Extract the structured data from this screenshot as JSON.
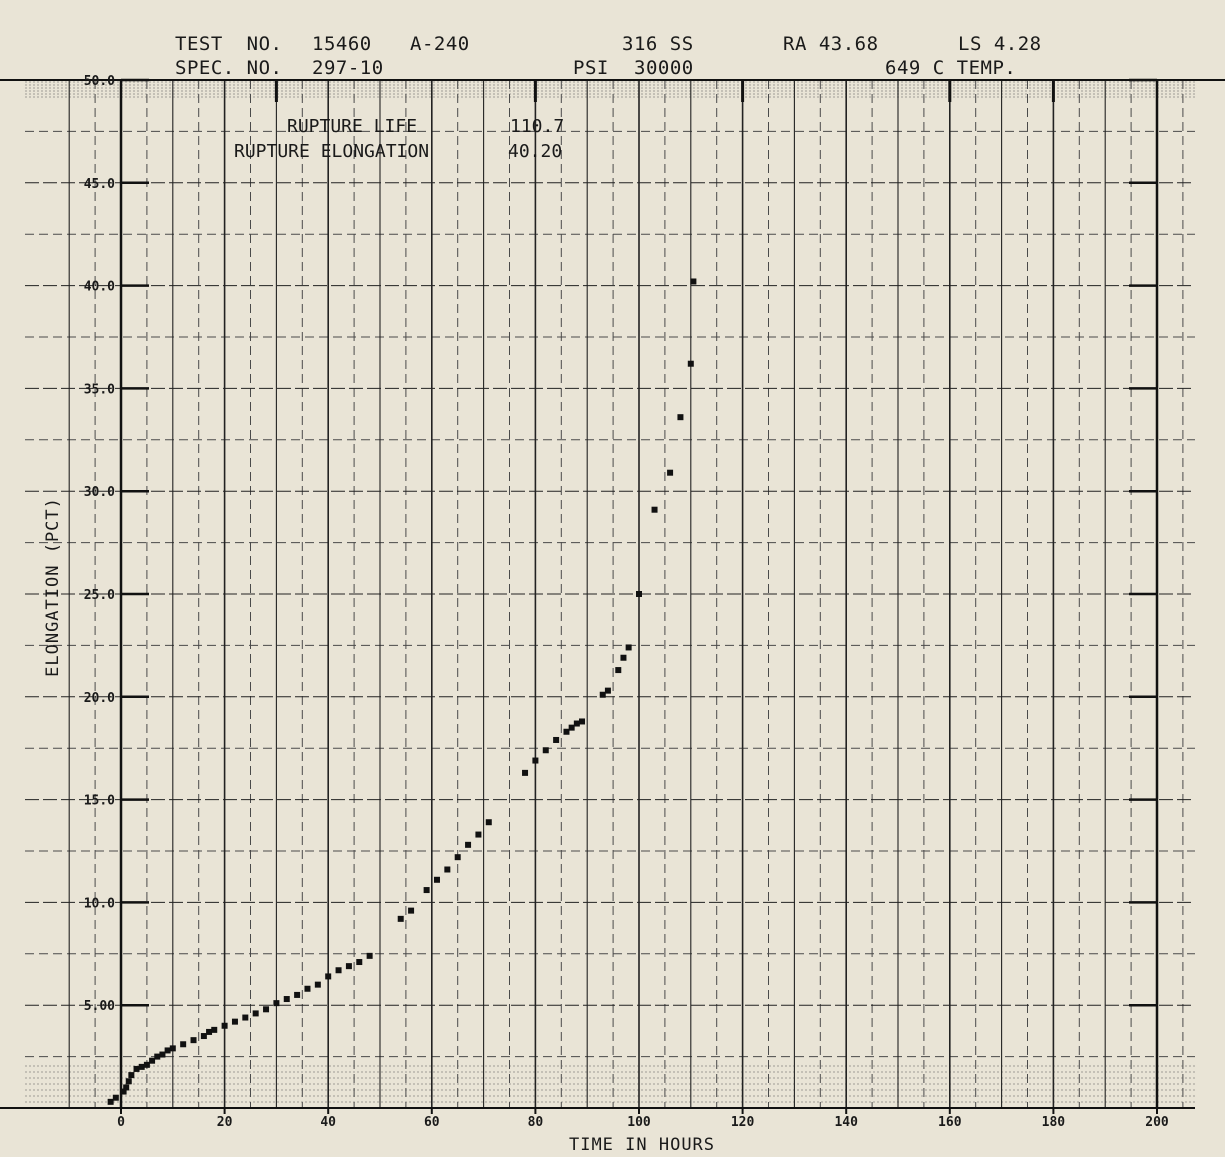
{
  "header": {
    "test_no_label": "TEST  NO.",
    "test_no": "15460",
    "test_code": "A-240",
    "spec_no_label": "SPEC. NO.",
    "spec_no": "297-10",
    "material": "316 SS",
    "psi_label": "PSI",
    "psi": "30000",
    "ra": "RA 43.68",
    "ls": "LS 4.28",
    "temp": "649 C TEMP."
  },
  "annotation": {
    "rupture_life_label": "RUPTURE LIFE",
    "rupture_life_value": "110.7",
    "rupture_elongation_label": "RUPTURE ELONGATION",
    "rupture_elongation_value": "40.20"
  },
  "chart_data": {
    "type": "scatter",
    "title": "",
    "xlabel": "TIME IN HOURS",
    "ylabel": "ELONGATION  (PCT)",
    "xlim": [
      0,
      200
    ],
    "ylim": [
      0,
      50
    ],
    "x_ticks": [
      "0",
      "20",
      "40",
      "60",
      "80",
      "100",
      "120",
      "140",
      "160",
      "180",
      "200"
    ],
    "y_ticks": [
      "50.0",
      "45.0",
      "40.0",
      "35.0",
      "30.0",
      "25.0",
      "20.0",
      "15.0",
      "10.0",
      "5.00"
    ],
    "y_tick_values": [
      50,
      45,
      40,
      35,
      30,
      25,
      20,
      15,
      10,
      5
    ],
    "grid": true,
    "series": [
      {
        "name": "",
        "x": [
          -2,
          -1,
          0.5,
          1,
          1.5,
          2,
          3,
          4,
          5,
          6,
          7,
          8,
          9,
          10,
          12,
          14,
          16,
          17,
          18,
          20,
          22,
          24,
          26,
          28,
          30,
          32,
          34,
          36,
          38,
          40,
          42,
          44,
          46,
          48,
          54,
          56,
          59,
          61,
          63,
          65,
          67,
          69,
          71,
          78,
          80,
          82,
          84,
          86,
          87,
          88,
          89,
          93,
          94,
          96,
          97,
          98,
          103,
          100,
          106,
          108,
          110,
          110.5
        ],
        "y": [
          0.3,
          0.5,
          0.8,
          1.0,
          1.3,
          1.6,
          1.9,
          2.0,
          2.1,
          2.3,
          2.5,
          2.6,
          2.8,
          2.9,
          3.1,
          3.3,
          3.5,
          3.7,
          3.8,
          4.0,
          4.2,
          4.4,
          4.6,
          4.8,
          5.1,
          5.3,
          5.5,
          5.8,
          6.0,
          6.4,
          6.7,
          6.9,
          7.1,
          7.4,
          9.2,
          9.6,
          10.6,
          11.1,
          11.6,
          12.2,
          12.8,
          13.3,
          13.9,
          16.3,
          16.9,
          17.4,
          17.9,
          18.3,
          18.5,
          18.7,
          18.8,
          20.1,
          20.3,
          21.3,
          21.9,
          22.4,
          29.1,
          25.0,
          30.9,
          33.6,
          36.2,
          40.2
        ]
      }
    ]
  }
}
